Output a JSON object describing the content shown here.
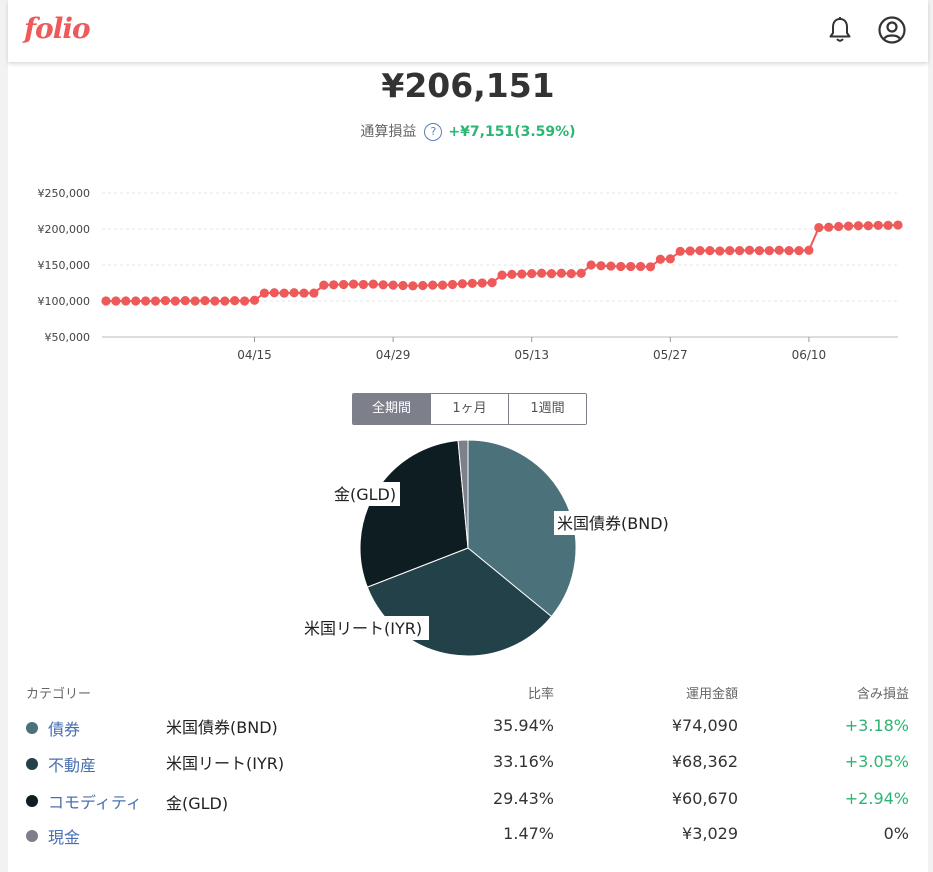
{
  "header": {
    "logo": "folio",
    "bell_icon": "bell-icon",
    "user_icon": "user-circle-icon"
  },
  "summary": {
    "total": "¥206,151",
    "pl_label": "通算損益",
    "help_icon": "question-circle-icon",
    "pl_value": "+¥7,151",
    "pl_percent": "(3.59%)"
  },
  "chart_data": {
    "type": "line",
    "ylim": [
      50000,
      250000
    ],
    "yticks": [
      "¥250,000",
      "¥200,000",
      "¥150,000",
      "¥100,000",
      "¥50,000"
    ],
    "xticks": [
      "04/15",
      "04/29",
      "05/13",
      "05/27",
      "06/10"
    ],
    "color": "#ee5a5a",
    "values": [
      100000,
      100000,
      100000,
      100000,
      100000,
      100000,
      100500,
      100000,
      100500,
      100000,
      100500,
      100000,
      100000,
      100500,
      100000,
      101000,
      111000,
      111500,
      111000,
      111500,
      111000,
      111000,
      122000,
      122500,
      123000,
      123500,
      123000,
      123500,
      122500,
      122000,
      121500,
      121000,
      121500,
      122000,
      122000,
      123000,
      124000,
      124500,
      125000,
      125500,
      136000,
      137000,
      137500,
      138000,
      138500,
      138000,
      138500,
      138000,
      138500,
      150000,
      149000,
      148500,
      148000,
      148000,
      148000,
      147500,
      158000,
      158500,
      169000,
      169500,
      170000,
      170000,
      169500,
      170000,
      170000,
      170500,
      170000,
      170000,
      170500,
      170000,
      170000,
      170500,
      202000,
      202500,
      203500,
      204000,
      204500,
      204500,
      205000,
      205000,
      205500
    ],
    "grid": true
  },
  "periods": {
    "all": "全期間",
    "month": "1ヶ月",
    "week": "1週間"
  },
  "pie": {
    "labels": {
      "bnd": "米国債券(BND)",
      "iyr": "米国リート(IYR)",
      "gld": "金(GLD)"
    },
    "values": [
      35.94,
      33.16,
      29.43,
      1.47
    ],
    "colors": [
      "#4b727b",
      "#234149",
      "#0d1d21",
      "#7d7f8a"
    ]
  },
  "table": {
    "headers": {
      "category": "カテゴリー",
      "ratio": "比率",
      "amount": "運用金額",
      "pl": "含み損益"
    },
    "rows": [
      {
        "category": "債券",
        "fund": "米国債券(BND)",
        "ratio": "35.94%",
        "amount": "¥74,090",
        "pl": "+3.18%",
        "color": "#4b727b"
      },
      {
        "category": "不動産",
        "fund": "米国リート(IYR)",
        "ratio": "33.16%",
        "amount": "¥68,362",
        "pl": "+3.05%",
        "color": "#234149"
      },
      {
        "category": "コモディティ",
        "fund": "金(GLD)",
        "ratio": "29.43%",
        "amount": "¥60,670",
        "pl": "+2.94%",
        "color": "#0d1d21"
      },
      {
        "category": "現金",
        "fund": "",
        "ratio": "1.47%",
        "amount": "¥3,029",
        "pl": "0%",
        "color": "#7d7f8a"
      }
    ]
  }
}
